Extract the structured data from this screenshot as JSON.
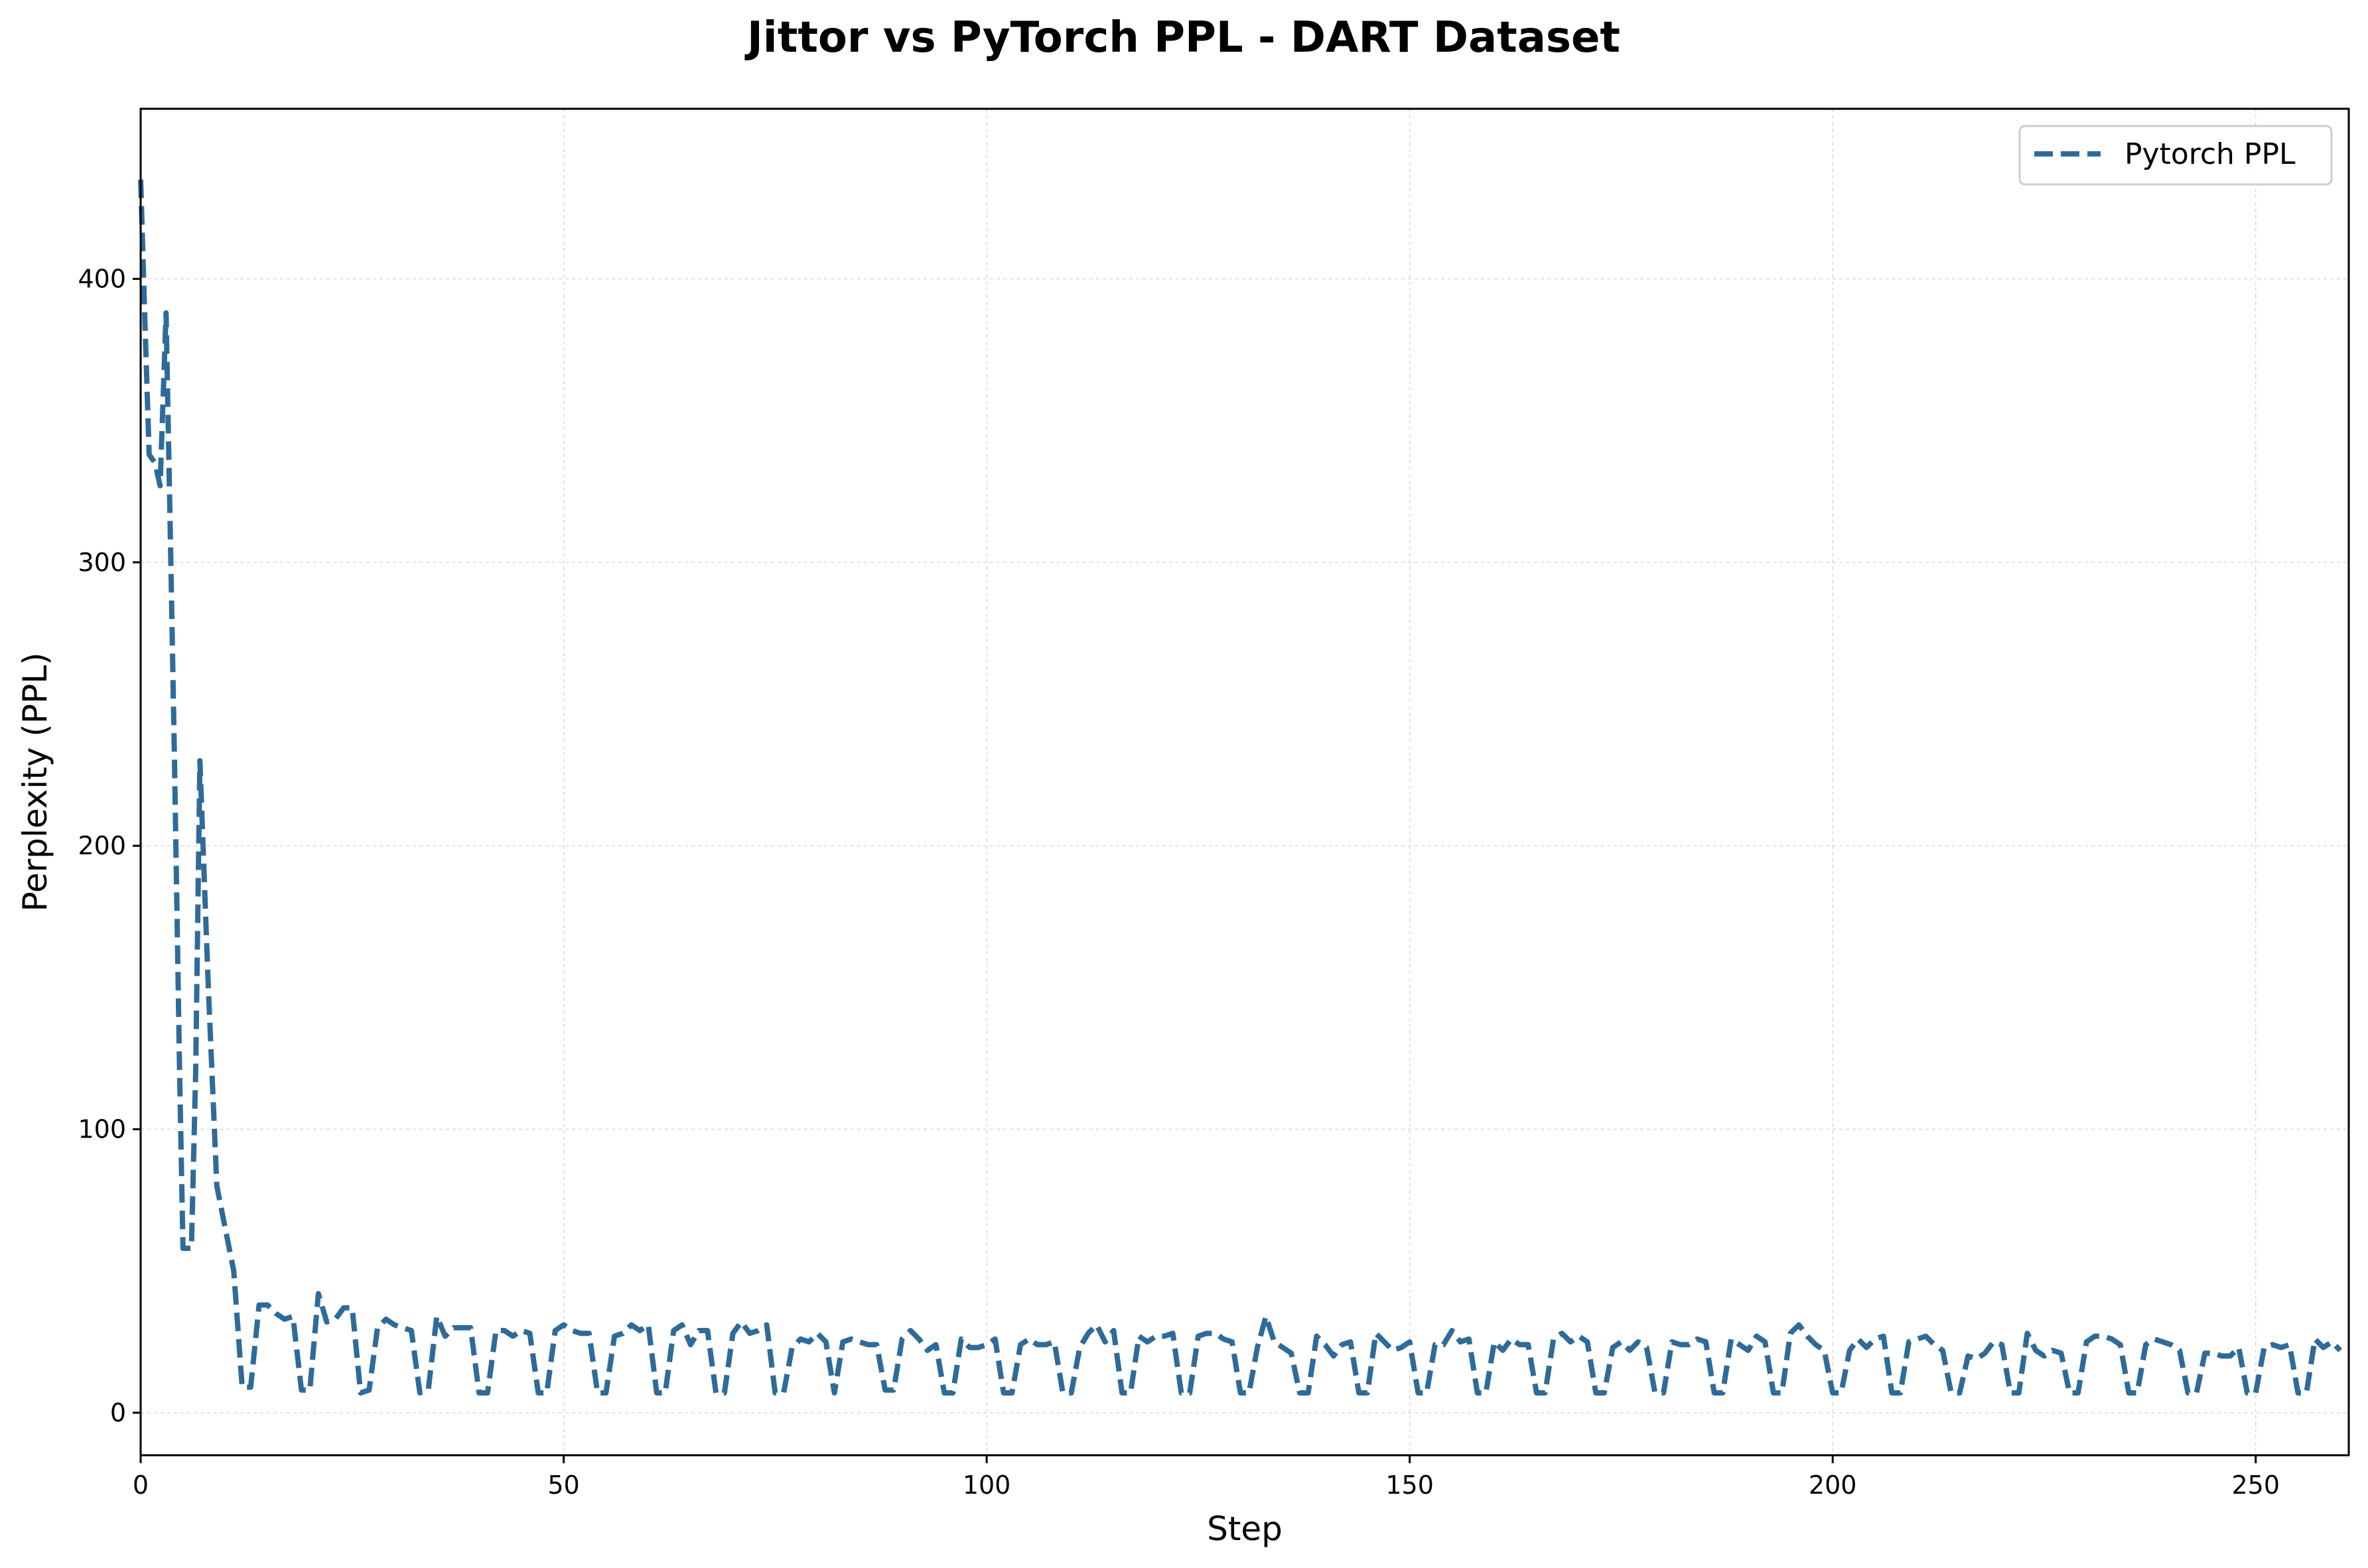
{
  "colors": {
    "series": "#2e6b99",
    "grid": "#d9d9d9",
    "axis": "#000000"
  },
  "chart_data": {
    "type": "line",
    "title": "Jittor vs PyTorch PPL - DART Dataset",
    "xlabel": "Step",
    "ylabel": "Perplexity (PPL)",
    "xlim": [
      0,
      261
    ],
    "ylim": [
      -15,
      460
    ],
    "xticks": [
      0,
      50,
      100,
      150,
      200,
      250
    ],
    "yticks": [
      0,
      100,
      200,
      300,
      400
    ],
    "grid": true,
    "legend_position": "top-right",
    "series": [
      {
        "name": "Pytorch PPL",
        "style": "dashed",
        "points": [
          [
            0,
            435
          ],
          [
            0.5,
            385
          ],
          [
            1,
            338
          ],
          [
            1.7,
            335
          ],
          [
            2.3,
            327
          ],
          [
            3,
            388
          ],
          [
            3.6,
            295
          ],
          [
            4,
            230
          ],
          [
            4.6,
            120
          ],
          [
            5,
            58
          ],
          [
            6,
            58
          ],
          [
            6.5,
            120
          ],
          [
            7,
            230
          ],
          [
            7.5,
            190
          ],
          [
            8,
            150
          ],
          [
            9,
            80
          ],
          [
            10,
            65
          ],
          [
            11,
            50
          ],
          [
            12,
            9
          ],
          [
            13,
            9
          ],
          [
            14,
            38
          ],
          [
            15,
            38
          ],
          [
            16,
            35
          ],
          [
            17,
            33
          ],
          [
            18,
            34
          ],
          [
            19,
            8
          ],
          [
            20,
            8
          ],
          [
            21,
            42
          ],
          [
            22,
            32
          ],
          [
            23,
            33
          ],
          [
            24,
            37
          ],
          [
            25,
            37
          ],
          [
            26,
            7
          ],
          [
            27,
            8
          ],
          [
            28,
            30
          ],
          [
            29,
            33
          ],
          [
            30,
            31
          ],
          [
            31,
            30
          ],
          [
            32,
            29
          ],
          [
            33,
            7
          ],
          [
            34,
            8
          ],
          [
            35,
            34
          ],
          [
            36,
            27
          ],
          [
            37,
            30
          ],
          [
            38,
            30
          ],
          [
            39,
            30
          ],
          [
            40,
            7
          ],
          [
            41,
            7
          ],
          [
            42,
            29
          ],
          [
            43,
            29
          ],
          [
            44,
            27
          ],
          [
            45,
            29
          ],
          [
            46,
            28
          ],
          [
            47,
            7
          ],
          [
            48,
            7
          ],
          [
            49,
            29
          ],
          [
            50,
            31
          ],
          [
            51,
            29
          ],
          [
            52,
            28
          ],
          [
            53,
            28
          ],
          [
            54,
            7
          ],
          [
            55,
            7
          ],
          [
            56,
            27
          ],
          [
            57,
            28
          ],
          [
            58,
            31
          ],
          [
            59,
            29
          ],
          [
            60,
            31
          ],
          [
            61,
            7
          ],
          [
            62,
            7
          ],
          [
            63,
            29
          ],
          [
            64,
            31
          ],
          [
            65,
            24
          ],
          [
            66,
            29
          ],
          [
            67,
            29
          ],
          [
            68,
            7
          ],
          [
            69,
            7
          ],
          [
            70,
            28
          ],
          [
            71,
            32
          ],
          [
            72,
            28
          ],
          [
            73,
            29
          ],
          [
            74,
            31
          ],
          [
            75,
            7
          ],
          [
            76,
            7
          ],
          [
            77,
            23
          ],
          [
            78,
            26
          ],
          [
            79,
            25
          ],
          [
            80,
            28
          ],
          [
            81,
            25
          ],
          [
            82,
            7
          ],
          [
            83,
            25
          ],
          [
            84,
            26
          ],
          [
            85,
            25
          ],
          [
            86,
            24
          ],
          [
            87,
            24
          ],
          [
            88,
            8
          ],
          [
            89,
            8
          ],
          [
            90,
            26
          ],
          [
            91,
            29
          ],
          [
            92,
            26
          ],
          [
            93,
            22
          ],
          [
            94,
            24
          ],
          [
            95,
            7
          ],
          [
            96,
            7
          ],
          [
            97,
            26
          ],
          [
            98,
            23
          ],
          [
            99,
            23
          ],
          [
            100,
            24
          ],
          [
            101,
            26
          ],
          [
            102,
            7
          ],
          [
            103,
            7
          ],
          [
            104,
            24
          ],
          [
            105,
            26
          ],
          [
            106,
            24
          ],
          [
            107,
            24
          ],
          [
            108,
            25
          ],
          [
            109,
            7
          ],
          [
            110,
            7
          ],
          [
            111,
            23
          ],
          [
            112,
            28
          ],
          [
            113,
            31
          ],
          [
            114,
            25
          ],
          [
            115,
            29
          ],
          [
            116,
            7
          ],
          [
            117,
            7
          ],
          [
            118,
            27
          ],
          [
            119,
            25
          ],
          [
            120,
            27
          ],
          [
            121,
            27
          ],
          [
            122,
            28
          ],
          [
            123,
            7
          ],
          [
            124,
            7
          ],
          [
            125,
            27
          ],
          [
            126,
            28
          ],
          [
            127,
            28
          ],
          [
            128,
            26
          ],
          [
            129,
            25
          ],
          [
            130,
            7
          ],
          [
            131,
            7
          ],
          [
            132,
            23
          ],
          [
            133,
            34
          ],
          [
            134,
            25
          ],
          [
            135,
            23
          ],
          [
            136,
            21
          ],
          [
            137,
            7
          ],
          [
            138,
            7
          ],
          [
            139,
            27
          ],
          [
            140,
            24
          ],
          [
            141,
            20
          ],
          [
            142,
            24
          ],
          [
            143,
            25
          ],
          [
            144,
            7
          ],
          [
            145,
            7
          ],
          [
            146,
            28
          ],
          [
            147,
            25
          ],
          [
            148,
            22
          ],
          [
            149,
            23
          ],
          [
            150,
            25
          ],
          [
            151,
            7
          ],
          [
            152,
            7
          ],
          [
            153,
            24
          ],
          [
            154,
            24
          ],
          [
            155,
            29
          ],
          [
            156,
            25
          ],
          [
            157,
            26
          ],
          [
            158,
            7
          ],
          [
            159,
            7
          ],
          [
            160,
            25
          ],
          [
            161,
            22
          ],
          [
            162,
            26
          ],
          [
            163,
            24
          ],
          [
            164,
            24
          ],
          [
            165,
            7
          ],
          [
            166,
            7
          ],
          [
            167,
            26
          ],
          [
            168,
            28
          ],
          [
            169,
            25
          ],
          [
            170,
            27
          ],
          [
            171,
            25
          ],
          [
            172,
            7
          ],
          [
            173,
            7
          ],
          [
            174,
            23
          ],
          [
            175,
            25
          ],
          [
            176,
            22
          ],
          [
            177,
            25
          ],
          [
            178,
            23
          ],
          [
            179,
            7
          ],
          [
            180,
            7
          ],
          [
            181,
            25
          ],
          [
            182,
            24
          ],
          [
            183,
            24
          ],
          [
            184,
            26
          ],
          [
            185,
            25
          ],
          [
            186,
            7
          ],
          [
            187,
            7
          ],
          [
            188,
            26
          ],
          [
            189,
            24
          ],
          [
            190,
            22
          ],
          [
            191,
            27
          ],
          [
            192,
            25
          ],
          [
            193,
            7
          ],
          [
            194,
            7
          ],
          [
            195,
            28
          ],
          [
            196,
            31
          ],
          [
            197,
            27
          ],
          [
            198,
            24
          ],
          [
            199,
            22
          ],
          [
            200,
            7
          ],
          [
            201,
            7
          ],
          [
            202,
            22
          ],
          [
            203,
            26
          ],
          [
            204,
            23
          ],
          [
            205,
            26
          ],
          [
            206,
            27
          ],
          [
            207,
            7
          ],
          [
            208,
            7
          ],
          [
            209,
            25
          ],
          [
            210,
            26
          ],
          [
            211,
            27
          ],
          [
            212,
            24
          ],
          [
            213,
            22
          ],
          [
            214,
            7
          ],
          [
            215,
            7
          ],
          [
            216,
            20
          ],
          [
            217,
            19
          ],
          [
            218,
            21
          ],
          [
            219,
            25
          ],
          [
            220,
            24
          ],
          [
            221,
            7
          ],
          [
            222,
            7
          ],
          [
            223,
            28
          ],
          [
            224,
            22
          ],
          [
            225,
            20
          ],
          [
            226,
            22
          ],
          [
            227,
            21
          ],
          [
            228,
            7
          ],
          [
            229,
            7
          ],
          [
            230,
            25
          ],
          [
            231,
            27
          ],
          [
            232,
            27
          ],
          [
            233,
            26
          ],
          [
            234,
            24
          ],
          [
            235,
            7
          ],
          [
            236,
            7
          ],
          [
            237,
            24
          ],
          [
            238,
            26
          ],
          [
            239,
            25
          ],
          [
            240,
            24
          ],
          [
            241,
            22
          ],
          [
            242,
            7
          ],
          [
            243,
            7
          ],
          [
            244,
            21
          ],
          [
            245,
            21
          ],
          [
            246,
            20
          ],
          [
            247,
            20
          ],
          [
            248,
            23
          ],
          [
            249,
            7
          ],
          [
            250,
            7
          ],
          [
            251,
            23
          ],
          [
            252,
            24
          ],
          [
            253,
            23
          ],
          [
            254,
            24
          ],
          [
            255,
            7
          ],
          [
            256,
            7
          ],
          [
            257,
            26
          ],
          [
            258,
            23
          ],
          [
            259,
            25
          ],
          [
            260,
            22
          ]
        ]
      }
    ]
  }
}
